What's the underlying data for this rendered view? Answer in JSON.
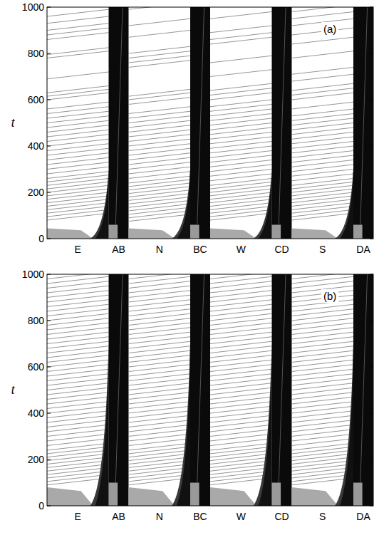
{
  "chart_data": [
    {
      "type": "spacetime",
      "panel_label": "(a)",
      "y_label": "t",
      "categories": [
        "E",
        "AB",
        "N",
        "BC",
        "W",
        "CD",
        "S",
        "DA"
      ],
      "ylim": [
        0,
        1000
      ],
      "yticks": [
        0,
        200,
        400,
        600,
        800,
        1000
      ],
      "streak_rise": 30,
      "transient_left": 45,
      "transient_right": 300,
      "junction_transient": 60,
      "streaks": [
        [
          80,
          95,
          110,
          125,
          140,
          155,
          170,
          185,
          200,
          215,
          230,
          245,
          260,
          280,
          300,
          320,
          340,
          360,
          380,
          400,
          420,
          440,
          460,
          480,
          500,
          520,
          540,
          560,
          600,
          615,
          630,
          690,
          780,
          795,
          860,
          880,
          900,
          930,
          960
        ],
        [
          75,
          90,
          105,
          120,
          135,
          150,
          165,
          180,
          195,
          210,
          225,
          240,
          260,
          280,
          300,
          320,
          340,
          360,
          380,
          400,
          420,
          440,
          460,
          480,
          500,
          520,
          540,
          580,
          600,
          615,
          740,
          760,
          780,
          800,
          870,
          920,
          990
        ],
        [
          80,
          95,
          110,
          125,
          140,
          155,
          170,
          185,
          200,
          215,
          230,
          250,
          270,
          290,
          310,
          330,
          350,
          370,
          390,
          410,
          430,
          450,
          470,
          490,
          510,
          530,
          550,
          570,
          600,
          620,
          640,
          700,
          760,
          840,
          860,
          890,
          950
        ],
        [
          80,
          95,
          110,
          125,
          140,
          155,
          170,
          185,
          200,
          215,
          230,
          250,
          270,
          290,
          310,
          330,
          350,
          370,
          390,
          410,
          430,
          450,
          470,
          490,
          510,
          530,
          560,
          600,
          620,
          640,
          680,
          710,
          780,
          840,
          880,
          920,
          950,
          980
        ]
      ]
    },
    {
      "type": "spacetime",
      "panel_label": "(b)",
      "y_label": "t",
      "categories": [
        "E",
        "AB",
        "N",
        "BC",
        "W",
        "CD",
        "S",
        "DA"
      ],
      "ylim": [
        0,
        1000
      ],
      "yticks": [
        0,
        200,
        400,
        600,
        800,
        1000
      ],
      "streak_rise": 30,
      "transient_left": 80,
      "transient_right": 700,
      "junction_transient": 100,
      "streaks": [
        [
          90,
          105,
          120,
          135,
          150,
          165,
          180,
          195,
          210,
          225,
          240,
          260,
          280,
          300,
          320,
          340,
          360,
          380,
          400,
          420,
          440,
          460,
          480,
          500,
          520,
          540,
          560,
          580,
          600,
          620,
          640,
          660,
          680,
          700,
          720,
          740,
          760,
          780,
          800,
          820,
          840,
          860,
          880,
          900,
          920,
          940,
          960,
          980
        ],
        [
          90,
          105,
          120,
          135,
          150,
          165,
          180,
          195,
          210,
          225,
          240,
          260,
          280,
          300,
          320,
          340,
          360,
          380,
          400,
          420,
          440,
          460,
          480,
          500,
          520,
          540,
          560,
          580,
          600,
          620,
          640,
          660,
          680,
          700,
          720,
          740,
          760,
          780,
          800,
          820,
          840,
          860,
          880,
          900,
          920,
          940,
          960,
          980
        ],
        [
          90,
          105,
          120,
          135,
          150,
          165,
          180,
          195,
          210,
          225,
          240,
          260,
          280,
          300,
          320,
          340,
          360,
          380,
          400,
          420,
          440,
          460,
          480,
          500,
          520,
          540,
          560,
          580,
          600,
          620,
          640,
          660,
          680,
          700,
          720,
          740,
          760,
          780,
          800,
          820,
          840,
          860,
          880,
          900,
          920,
          940,
          960,
          980
        ],
        [
          90,
          105,
          120,
          135,
          150,
          165,
          180,
          195,
          210,
          225,
          240,
          260,
          280,
          300,
          320,
          340,
          360,
          380,
          400,
          420,
          440,
          460,
          480,
          500,
          520,
          540,
          560,
          580,
          600,
          620,
          640,
          660,
          680,
          700,
          720,
          740,
          760,
          780,
          800,
          820,
          840,
          860,
          880,
          900,
          920,
          940,
          960,
          980
        ]
      ]
    }
  ]
}
